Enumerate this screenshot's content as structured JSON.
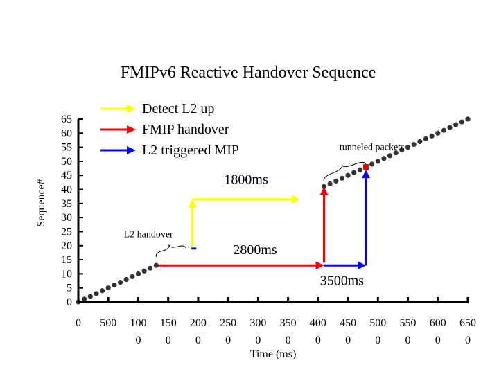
{
  "chart_data": {
    "type": "scatter",
    "title": "FMIPv6 Reactive Handover Sequence",
    "xlabel": "Time (ms)",
    "ylabel": "Sequence#",
    "xlim": [
      0,
      6500
    ],
    "ylim": [
      0,
      65
    ],
    "x_ticks": [
      0,
      500,
      1000,
      1500,
      2000,
      2500,
      3000,
      3500,
      4000,
      4500,
      5000,
      5500,
      6000,
      6500
    ],
    "x_tick_labels": [
      [
        "0",
        ""
      ],
      [
        "500",
        ""
      ],
      [
        "100",
        "0"
      ],
      [
        "150",
        "0"
      ],
      [
        "200",
        "0"
      ],
      [
        "250",
        "0"
      ],
      [
        "300",
        "0"
      ],
      [
        "350",
        "0"
      ],
      [
        "400",
        "0"
      ],
      [
        "450",
        "0"
      ],
      [
        "500",
        "0"
      ],
      [
        "550",
        "0"
      ],
      [
        "600",
        "0"
      ],
      [
        "650",
        "0"
      ]
    ],
    "y_ticks": [
      0,
      5,
      10,
      15,
      20,
      25,
      30,
      35,
      40,
      45,
      50,
      55,
      60,
      65
    ],
    "y_tick_labels": [
      "0",
      "5",
      "10",
      "15",
      "20",
      "25",
      "30",
      "35",
      "40",
      "45",
      "50",
      "55",
      "60",
      "65"
    ],
    "grid": false,
    "legend_position": "top-left",
    "series": [
      {
        "color": "#333333",
        "points": [
          [
            0,
            0
          ],
          [
            100,
            1
          ],
          [
            200,
            2
          ],
          [
            300,
            3
          ],
          [
            400,
            4
          ],
          [
            500,
            5
          ],
          [
            600,
            6
          ],
          [
            700,
            7
          ],
          [
            800,
            8
          ],
          [
            900,
            9
          ],
          [
            1000,
            10
          ],
          [
            1100,
            11
          ],
          [
            1200,
            12
          ],
          [
            1300,
            13
          ],
          [
            4100,
            41
          ],
          [
            4200,
            42
          ],
          [
            4300,
            43
          ],
          [
            4400,
            44
          ],
          [
            4500,
            45
          ],
          [
            4600,
            46
          ],
          [
            4700,
            47
          ],
          [
            4800,
            48
          ],
          [
            4900,
            49
          ],
          [
            5000,
            50
          ],
          [
            5100,
            51
          ],
          [
            5200,
            52
          ],
          [
            5300,
            53
          ],
          [
            5400,
            54
          ],
          [
            5500,
            55
          ],
          [
            5600,
            56
          ],
          [
            5700,
            57
          ],
          [
            5800,
            58
          ],
          [
            5900,
            59
          ],
          [
            6000,
            60
          ],
          [
            6100,
            61
          ],
          [
            6200,
            62
          ],
          [
            6300,
            63
          ],
          [
            6400,
            64
          ],
          [
            6500,
            65
          ]
        ]
      }
    ],
    "legend": [
      {
        "label": "Detect L2 up",
        "color": "#ffff00"
      },
      {
        "label": "FMIP handover",
        "color": "#ff0000"
      },
      {
        "label": "L2 triggered MIP",
        "color": "#0000ff"
      }
    ],
    "arrows": [
      {
        "color": "#ffff00",
        "path": [
          [
            1900,
            19
          ],
          [
            1900,
            36.5
          ]
        ],
        "head": true
      },
      {
        "color": "#ffff00",
        "path": [
          [
            1900,
            36.5
          ],
          [
            3700,
            36.5
          ]
        ],
        "head": true
      },
      {
        "color": "#ff0000",
        "path": [
          [
            1300,
            13
          ],
          [
            4100,
            13
          ]
        ],
        "head": true
      },
      {
        "color": "#ff0000",
        "path": [
          [
            4100,
            14
          ],
          [
            4100,
            41
          ]
        ],
        "head": true
      },
      {
        "color": "#0000ff",
        "path": [
          [
            4100,
            13
          ],
          [
            4800,
            13
          ]
        ],
        "head": true
      },
      {
        "color": "#0000ff",
        "path": [
          [
            4800,
            13
          ],
          [
            4800,
            47
          ]
        ],
        "head": true
      }
    ],
    "markers": [
      {
        "shape": "dash",
        "color": "#0000ff",
        "x": 1900,
        "y": 19
      },
      {
        "shape": "square",
        "color": "#ff0000",
        "x": 4800,
        "y": 48
      }
    ],
    "annotations": [
      {
        "text": "1800ms",
        "x": 2800,
        "y": 42,
        "size": "large"
      },
      {
        "text": "2800ms",
        "x": 2950,
        "y": 17,
        "size": "large"
      },
      {
        "text": "3500ms",
        "x": 4400,
        "y": 6,
        "size": "large"
      },
      {
        "text": "L2 handover",
        "x": 1170,
        "y": 23,
        "size": "small"
      },
      {
        "text": "tunneled packets",
        "x": 4900,
        "y": 54,
        "size": "small"
      }
    ],
    "braces": [
      {
        "from": [
          1300,
          16
        ],
        "to": [
          1800,
          19
        ]
      },
      {
        "from": [
          4100,
          43
        ],
        "to": [
          4800,
          49
        ]
      }
    ]
  }
}
